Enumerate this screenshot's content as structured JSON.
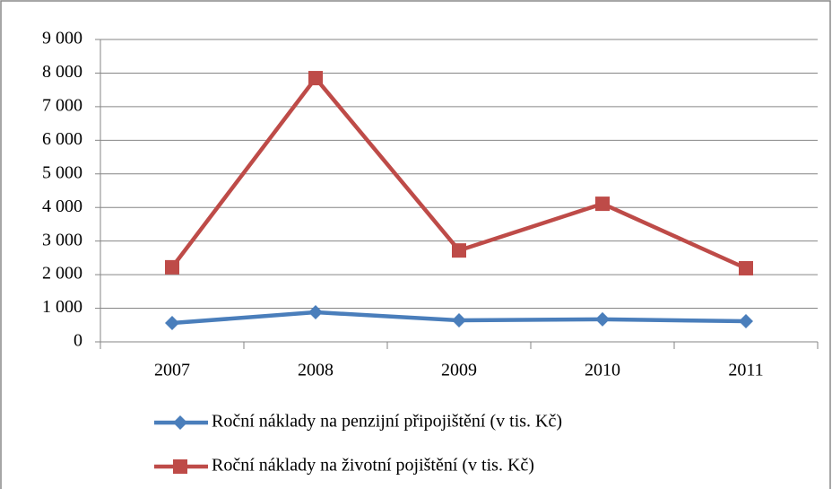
{
  "chart_data": {
    "type": "line",
    "categories": [
      "2007",
      "2008",
      "2009",
      "2010",
      "2011"
    ],
    "series": [
      {
        "name": "Roční náklady na penzijní připojištění (v tis. Kč)",
        "color": "#4a7ebb",
        "marker": "diamond",
        "values": [
          560,
          880,
          640,
          670,
          615
        ]
      },
      {
        "name": "Roční náklady na životní pojištění (v tis. Kč)",
        "color": "#be4b48",
        "marker": "square",
        "values": [
          2220,
          7850,
          2720,
          4110,
          2190
        ]
      }
    ],
    "ylim": [
      0,
      9000
    ],
    "yticks": [
      0,
      {
        "value": 1000,
        "label": "1 000"
      },
      {
        "value": 2000,
        "label": "2 000"
      },
      {
        "value": 3000,
        "label": "3 000"
      },
      {
        "value": 4000,
        "label": "4 000"
      },
      {
        "value": 5000,
        "label": "5 000"
      },
      {
        "value": 6000,
        "label": "6 000"
      },
      {
        "value": 7000,
        "label": "7 000"
      },
      {
        "value": 8000,
        "label": "8 000"
      },
      {
        "value": 9000,
        "label": "9 000"
      }
    ],
    "grid": true,
    "legend": "bottom"
  }
}
